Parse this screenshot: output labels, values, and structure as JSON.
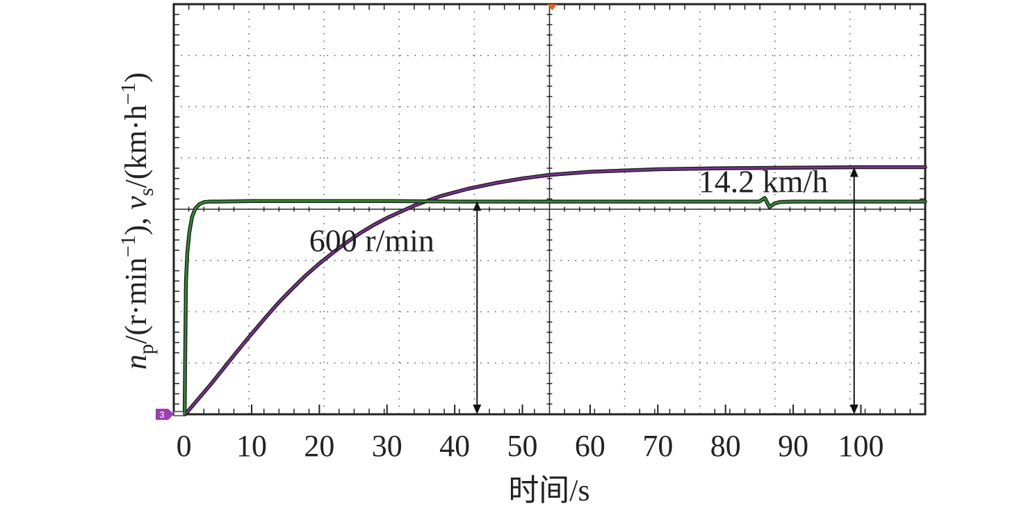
{
  "chart_data": {
    "type": "line",
    "title": "",
    "xlabel": "时间/s",
    "ylabel_parts": {
      "n": "n",
      "n_sub": "p",
      "n_unit_open": "/(r·min",
      "n_unit_sup": "−1",
      "n_unit_close": "), ",
      "v": "v",
      "v_sub": "s",
      "v_unit_open": "/(km·h",
      "v_unit_sup": "−1",
      "v_unit_close": ")"
    },
    "xlim": [
      -1.5,
      109.5
    ],
    "xticks": [
      0,
      10,
      20,
      30,
      40,
      50,
      60,
      70,
      80,
      90,
      100
    ],
    "xtick_labels": [
      "0",
      "10",
      "20",
      "30",
      "40",
      "50",
      "60",
      "70",
      "80",
      "90",
      "100"
    ],
    "y_divisions": 8,
    "grid": true,
    "series": [
      {
        "color": "#7b3294",
        "x": [
          0.2,
          2,
          4,
          6,
          8,
          10,
          12,
          14,
          16,
          18,
          20,
          22,
          24,
          26,
          28,
          30,
          34,
          38,
          42,
          46,
          50,
          54,
          60,
          70,
          80,
          90,
          100,
          109.5
        ],
        "y": [
          0.0,
          0.28,
          0.59,
          0.92,
          1.25,
          1.57,
          1.88,
          2.18,
          2.45,
          2.71,
          2.94,
          3.15,
          3.35,
          3.53,
          3.69,
          3.83,
          4.07,
          4.26,
          4.4,
          4.51,
          4.6,
          4.67,
          4.73,
          4.78,
          4.8,
          4.81,
          4.82,
          4.82
        ]
      },
      {
        "color": "#2f8f2f",
        "x": [
          0.1,
          0.3,
          0.5,
          0.8,
          1.2,
          1.7,
          2.3,
          3.0,
          4,
          5,
          10,
          20,
          30,
          40,
          50,
          60,
          70,
          80,
          85,
          85.8,
          86.5,
          87.2,
          88,
          90,
          95,
          100,
          109.5
        ],
        "y": [
          0.0,
          2.6,
          3.15,
          3.55,
          3.85,
          4.02,
          4.1,
          4.14,
          4.15,
          4.15,
          4.16,
          4.16,
          4.16,
          4.15,
          4.15,
          4.15,
          4.15,
          4.15,
          4.15,
          4.22,
          4.04,
          4.11,
          4.14,
          4.15,
          4.15,
          4.15,
          4.15
        ]
      }
    ],
    "annotations": [
      {
        "text": "600 r/min",
        "arrow_x": 43.3,
        "arrow_y_from": 0.0,
        "arrow_y_to": 4.16,
        "text_x": 18.5,
        "text_y": 3.4
      },
      {
        "text": "14.2 km/h",
        "arrow_x": 99.0,
        "arrow_y_from": 0.0,
        "arrow_y_to": 4.82,
        "text_x": 76.0,
        "text_y": 4.55
      }
    ],
    "trigger_marker_x": 54.4,
    "ground_marker_label": "3",
    "colors": {
      "frame": "#222222",
      "grid_dots": "#555555",
      "ground_marker": "#9b3fb5",
      "trigger_marker": "#e0622b"
    }
  }
}
